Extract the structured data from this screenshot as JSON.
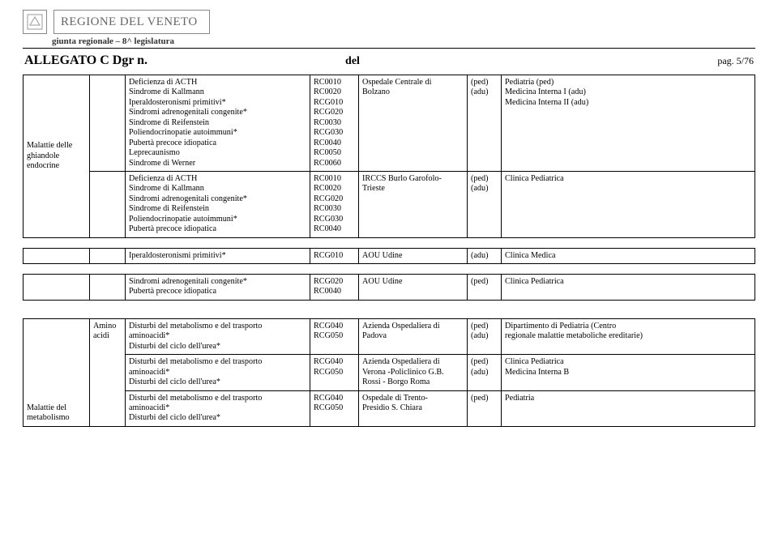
{
  "header": {
    "region_line": "REGIONE DEL VENETO",
    "sub_line": "giunta regionale – 8^ legislatura",
    "allegato": "ALLEGATO C Dgr n.",
    "del": "del",
    "pag": "pag. 5/76"
  },
  "rows": [
    {
      "category": "Malattie delle ghiandole endocrine",
      "category_rowspan": 2,
      "sub": "",
      "desc": [
        "Deficienza di ACTH",
        "Sindrome di Kallmann",
        "Iperaldosteronismi primitivi*",
        "Sindromi adrenogenitali congenite*",
        "Sindrome di Reifenstein",
        "Poliendocrinopatie autoimmuni*",
        "Pubertà precoce idiopatica",
        "Leprecaunismo",
        "Sindrome di Werner"
      ],
      "codes": [
        "RC0010",
        "RC0020",
        "RCG010",
        "RCG020",
        "RC0030",
        "RCG030",
        "RC0040",
        "RC0050",
        "RC0060"
      ],
      "hospital": [
        "Ospedale Centrale di",
        "Bolzano"
      ],
      "ped": [
        "(ped)",
        "(adu)"
      ],
      "clinic": [
        "Pediatria (ped)",
        "Medicina Interna I (adu)",
        "Medicina Interna II (adu)"
      ]
    },
    {
      "sub": "",
      "desc": [
        "Deficienza di ACTH",
        "Sindrome di Kallmann",
        "Sindromi adrenogenitali congenite*",
        "Sindrome di Reifenstein",
        "Poliendocrinopatie autoimmuni*",
        "Pubertà precoce idiopatica"
      ],
      "codes": [
        "RC0010",
        "RC0020",
        "RCG020",
        "RC0030",
        "RCG030",
        "RC0040"
      ],
      "hospital": [
        "IRCCS Burlo Garofolo-",
        "Trieste"
      ],
      "ped": [
        "(ped)",
        "(adu)"
      ],
      "clinic": [
        "Clinica Pediatrica"
      ]
    },
    {
      "category": "",
      "sub": "",
      "desc": [
        "Iperaldosteronismi primitivi*"
      ],
      "codes": [
        "RCG010"
      ],
      "hospital": [
        "AOU Udine"
      ],
      "ped": [
        "(adu)"
      ],
      "clinic": [
        "Clinica Medica"
      ]
    },
    {
      "category": "",
      "sub": "",
      "desc": [
        "Sindromi adrenogenitali congenite*",
        "Pubertà precoce idiopatica"
      ],
      "codes": [
        "RCG020",
        "RC0040"
      ],
      "hospital": [
        "AOU Udine"
      ],
      "ped": [
        "(ped)"
      ],
      "clinic": [
        "Clinica Pediatrica"
      ]
    },
    {
      "category": "Malattie del metabolismo",
      "category_rowspan": 3,
      "sub": "Amino acidi",
      "sub_rowspan": 3,
      "desc": [
        "Disturbi del metabolismo e del trasporto",
        "aminoacidi*",
        "Disturbi del ciclo dell'urea*"
      ],
      "codes": [
        "RCG040",
        "RCG050"
      ],
      "hospital": [
        "Azienda Ospedaliera di",
        "Padova"
      ],
      "ped": [
        "(ped)",
        "(adu)"
      ],
      "clinic": [
        "Dipartimento di Pediatria (Centro",
        "regionale malattie metaboliche ereditarie)"
      ]
    },
    {
      "desc": [
        "Disturbi del metabolismo e del trasporto",
        "aminoacidi*",
        "Disturbi del ciclo dell'urea*"
      ],
      "codes": [
        "RCG040",
        "",
        "RCG050"
      ],
      "hospital": [
        "Azienda Ospedaliera di",
        "Verona -Policlinico G.B.",
        "Rossi - Borgo Roma"
      ],
      "ped": [
        "(ped)",
        "(adu)"
      ],
      "clinic": [
        "Clinica Pediatrica",
        "Medicina Interna B"
      ]
    },
    {
      "desc": [
        "Disturbi del metabolismo e del trasporto",
        "aminoacidi*",
        "Disturbi del ciclo dell'urea*"
      ],
      "codes": [
        "RCG040",
        "RCG050"
      ],
      "hospital": [
        "Ospedale di Trento-",
        "Presidio S. Chiara"
      ],
      "ped": [
        "(ped)"
      ],
      "clinic": [
        "Pediatria"
      ]
    }
  ],
  "category_valign": {
    "0": "middle",
    "4": "bottom"
  }
}
